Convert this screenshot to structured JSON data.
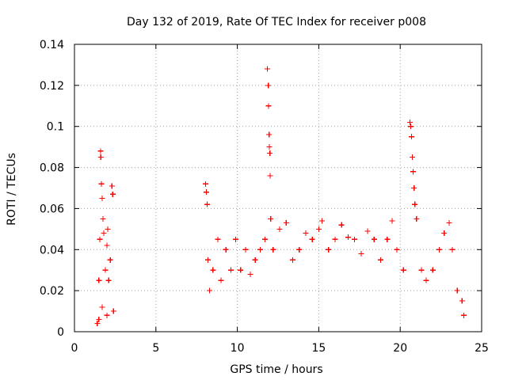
{
  "chart_data": {
    "type": "scatter",
    "title": "Day 132 of 2019, Rate Of TEC Index for receiver p008",
    "xlabel": "GPS time / hours",
    "ylabel": "ROTI / TECUs",
    "xlim": [
      0,
      25
    ],
    "ylim": [
      0,
      0.14
    ],
    "x_ticks": [
      0,
      5,
      10,
      15,
      20,
      25
    ],
    "x_tick_labels": [
      "0",
      "5",
      "10",
      "15",
      "20",
      "25"
    ],
    "y_ticks": [
      0,
      0.02,
      0.04,
      0.06,
      0.08,
      0.1,
      0.12,
      0.14
    ],
    "y_tick_labels": [
      "0",
      "0.02",
      "0.04",
      "0.06",
      "0.08",
      "0.1",
      "0.12",
      "0.14"
    ],
    "grid": true,
    "marker": "plus",
    "series": [
      {
        "name": "ROTI",
        "color": "#ff0000",
        "points": [
          [
            1.4,
            0.004
          ],
          [
            1.5,
            0.025
          ],
          [
            1.55,
            0.045
          ],
          [
            1.6,
            0.088
          ],
          [
            1.62,
            0.085
          ],
          [
            1.65,
            0.072
          ],
          [
            1.7,
            0.065
          ],
          [
            1.75,
            0.055
          ],
          [
            1.8,
            0.048
          ],
          [
            1.9,
            0.03
          ],
          [
            2.0,
            0.042
          ],
          [
            2.05,
            0.05
          ],
          [
            2.1,
            0.025
          ],
          [
            2.2,
            0.035
          ],
          [
            2.3,
            0.071
          ],
          [
            2.35,
            0.067
          ],
          [
            2.4,
            0.01
          ],
          [
            1.5,
            0.006
          ],
          [
            1.7,
            0.012
          ],
          [
            2.0,
            0.008
          ],
          [
            8.05,
            0.072
          ],
          [
            8.1,
            0.068
          ],
          [
            8.15,
            0.062
          ],
          [
            8.2,
            0.035
          ],
          [
            8.3,
            0.02
          ],
          [
            8.5,
            0.03
          ],
          [
            8.8,
            0.045
          ],
          [
            9.0,
            0.025
          ],
          [
            9.3,
            0.04
          ],
          [
            9.6,
            0.03
          ],
          [
            9.9,
            0.045
          ],
          [
            10.2,
            0.03
          ],
          [
            10.5,
            0.04
          ],
          [
            10.8,
            0.028
          ],
          [
            11.1,
            0.035
          ],
          [
            11.4,
            0.04
          ],
          [
            11.7,
            0.045
          ],
          [
            11.85,
            0.128
          ],
          [
            11.9,
            0.12
          ],
          [
            11.92,
            0.11
          ],
          [
            11.95,
            0.096
          ],
          [
            11.97,
            0.09
          ],
          [
            12.0,
            0.087
          ],
          [
            12.02,
            0.076
          ],
          [
            12.05,
            0.055
          ],
          [
            12.2,
            0.04
          ],
          [
            12.6,
            0.05
          ],
          [
            13.0,
            0.053
          ],
          [
            13.4,
            0.035
          ],
          [
            13.8,
            0.04
          ],
          [
            14.2,
            0.048
          ],
          [
            14.6,
            0.045
          ],
          [
            15.0,
            0.05
          ],
          [
            15.2,
            0.054
          ],
          [
            15.6,
            0.04
          ],
          [
            16.0,
            0.045
          ],
          [
            16.4,
            0.052
          ],
          [
            16.8,
            0.046
          ],
          [
            17.2,
            0.045
          ],
          [
            17.6,
            0.038
          ],
          [
            18.0,
            0.049
          ],
          [
            18.4,
            0.045
          ],
          [
            18.8,
            0.035
          ],
          [
            19.2,
            0.045
          ],
          [
            19.5,
            0.054
          ],
          [
            19.8,
            0.04
          ],
          [
            20.2,
            0.03
          ],
          [
            20.6,
            0.102
          ],
          [
            20.65,
            0.1
          ],
          [
            20.7,
            0.095
          ],
          [
            20.75,
            0.085
          ],
          [
            20.8,
            0.078
          ],
          [
            20.85,
            0.07
          ],
          [
            20.9,
            0.062
          ],
          [
            21.0,
            0.055
          ],
          [
            21.3,
            0.03
          ],
          [
            21.6,
            0.025
          ],
          [
            22.0,
            0.03
          ],
          [
            22.4,
            0.04
          ],
          [
            22.7,
            0.048
          ],
          [
            23.0,
            0.053
          ],
          [
            23.2,
            0.04
          ],
          [
            23.5,
            0.02
          ],
          [
            23.8,
            0.015
          ],
          [
            23.9,
            0.008
          ]
        ]
      }
    ]
  }
}
